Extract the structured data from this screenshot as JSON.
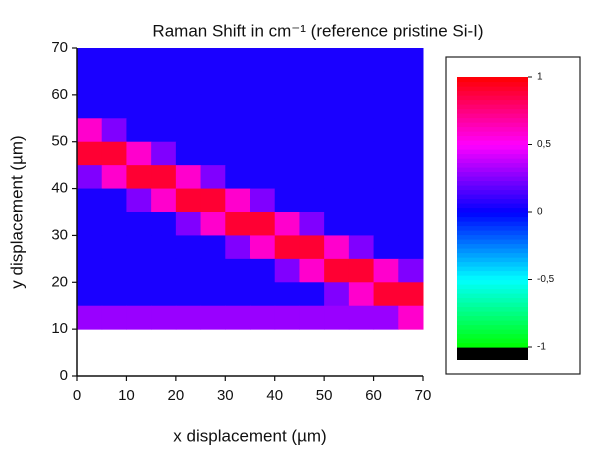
{
  "chart_data": {
    "type": "heatmap",
    "title": "Raman Shift in cm⁻¹ (reference pristine Si-I)",
    "x_label": "x displacement (µm)",
    "y_label": "y displacement (µm)",
    "x": [
      2.5,
      7.5,
      12.5,
      17.5,
      22.5,
      27.5,
      32.5,
      37.5,
      42.5,
      47.5,
      52.5,
      57.5,
      62.5,
      67.5
    ],
    "y": [
      67.5,
      62.5,
      57.5,
      52.5,
      47.5,
      42.5,
      37.5,
      32.5,
      27.5,
      22.5,
      17.5,
      12.5,
      7.5,
      2.5
    ],
    "z": [
      [
        0.05,
        0.05,
        0.05,
        0.05,
        0.05,
        0.05,
        0.05,
        0.05,
        0.05,
        0.05,
        0.05,
        0.05,
        0.05,
        0.05
      ],
      [
        0.05,
        0.05,
        0.05,
        0.05,
        0.05,
        0.05,
        0.05,
        0.05,
        0.05,
        0.05,
        0.05,
        0.05,
        0.05,
        0.05
      ],
      [
        0.05,
        0.05,
        0.05,
        0.05,
        0.05,
        0.05,
        0.05,
        0.05,
        0.05,
        0.05,
        0.05,
        0.05,
        0.05,
        0.05
      ],
      [
        0.6,
        0.25,
        0.05,
        0.05,
        0.05,
        0.05,
        0.05,
        0.05,
        0.05,
        0.05,
        0.05,
        0.05,
        0.05,
        0.05
      ],
      [
        0.9,
        0.9,
        0.6,
        0.25,
        0.05,
        0.05,
        0.05,
        0.05,
        0.05,
        0.05,
        0.05,
        0.05,
        0.05,
        0.05
      ],
      [
        0.25,
        0.6,
        0.9,
        0.9,
        0.6,
        0.25,
        0.05,
        0.05,
        0.05,
        0.05,
        0.05,
        0.05,
        0.05,
        0.05
      ],
      [
        0.05,
        0.05,
        0.25,
        0.6,
        0.9,
        0.9,
        0.6,
        0.25,
        0.05,
        0.05,
        0.05,
        0.05,
        0.05,
        0.05
      ],
      [
        0.05,
        0.05,
        0.05,
        0.05,
        0.25,
        0.6,
        0.9,
        0.9,
        0.6,
        0.25,
        0.05,
        0.05,
        0.05,
        0.05
      ],
      [
        0.05,
        0.05,
        0.05,
        0.05,
        0.05,
        0.05,
        0.25,
        0.6,
        0.9,
        0.9,
        0.6,
        0.25,
        0.05,
        0.05
      ],
      [
        0.05,
        0.05,
        0.05,
        0.05,
        0.05,
        0.05,
        0.05,
        0.05,
        0.25,
        0.6,
        0.9,
        0.9,
        0.6,
        0.25
      ],
      [
        0.05,
        0.05,
        0.05,
        0.05,
        0.05,
        0.05,
        0.05,
        0.05,
        0.05,
        0.05,
        0.25,
        0.6,
        0.9,
        0.9
      ],
      [
        0.3,
        0.3,
        0.3,
        0.3,
        0.3,
        0.3,
        0.3,
        0.3,
        0.3,
        0.3,
        0.3,
        0.3,
        0.3,
        0.6
      ],
      [
        null,
        null,
        null,
        null,
        null,
        null,
        null,
        null,
        null,
        null,
        null,
        null,
        null,
        null
      ],
      [
        null,
        null,
        null,
        null,
        null,
        null,
        null,
        null,
        null,
        null,
        null,
        null,
        null,
        null
      ]
    ],
    "xlim": [
      0,
      70
    ],
    "ylim": [
      0,
      70
    ],
    "xticks": [
      0,
      10,
      20,
      30,
      40,
      50,
      60,
      70
    ],
    "yticks": [
      0,
      10,
      20,
      30,
      40,
      50,
      60,
      70
    ],
    "colorscale": [
      [
        -1,
        "#00ff00"
      ],
      [
        -0.5,
        "#00ffff"
      ],
      [
        0,
        "#0000ff"
      ],
      [
        0.5,
        "#ff00ff"
      ],
      [
        1,
        "#ff0000"
      ]
    ],
    "zlim": [
      -1,
      1
    ],
    "zticks": [
      1,
      {
        "value": 0.5,
        "label": "0,5"
      },
      0,
      {
        "value": -0.5,
        "label": "-0,5"
      },
      -1
    ]
  }
}
